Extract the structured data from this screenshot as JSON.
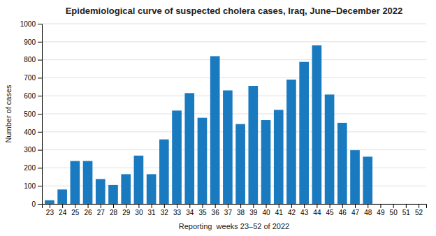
{
  "chart_data": {
    "type": "bar",
    "title": "Epidemiological curve of suspected cholera cases, Iraq, June–December 2022",
    "xlabel": "Reporting  weeks 23–52 of 2022",
    "ylabel": "Number of cases",
    "x": [
      23,
      24,
      25,
      26,
      27,
      28,
      29,
      30,
      31,
      32,
      33,
      34,
      35,
      36,
      37,
      38,
      39,
      40,
      41,
      42,
      43,
      44,
      45,
      46,
      47,
      48,
      49,
      50,
      51,
      52
    ],
    "values": [
      20,
      80,
      238,
      238,
      138,
      105,
      165,
      268,
      165,
      358,
      518,
      615,
      478,
      820,
      630,
      443,
      655,
      465,
      522,
      690,
      788,
      880,
      607,
      450,
      298,
      262,
      0,
      0,
      0,
      0
    ],
    "color": "#1a7abf",
    "xlim": [
      22.4,
      52.6
    ],
    "xticks": [
      23,
      24,
      25,
      26,
      27,
      28,
      29,
      30,
      31,
      32,
      33,
      34,
      35,
      36,
      37,
      38,
      39,
      40,
      41,
      42,
      43,
      44,
      45,
      46,
      47,
      48,
      49,
      50,
      51,
      52
    ],
    "ylim": [
      0,
      1000
    ],
    "yticks": [
      0,
      100,
      200,
      300,
      400,
      500,
      600,
      700,
      800,
      900,
      1000
    ],
    "grid": true
  }
}
